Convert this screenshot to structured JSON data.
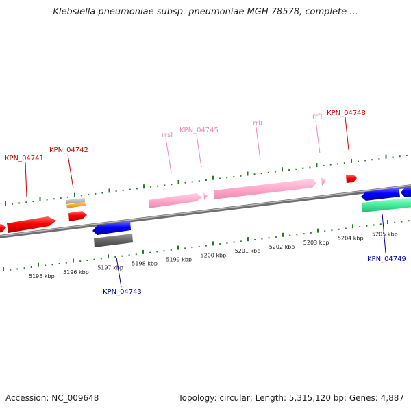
{
  "title": "Klebsiella pneumoniae subsp. pneumoniae MGH 78578, complete ...",
  "accession": "Accession: NC_009648",
  "summary": "Topology: circular; Length: 5,315,120 bp; Genes: 4,887",
  "colors": {
    "forward_gene": "#ff0000",
    "reverse_gene": "#0000ff",
    "rrna": "#ffaacc",
    "forward_label": "#cc0000",
    "reverse_label": "#0000aa",
    "rrna_label": "#ee88bb",
    "ticks": "#2a7a2a",
    "backbone": "#888888"
  },
  "scale_ticks": [
    {
      "label": "5195 kbp"
    },
    {
      "label": "5196 kbp"
    },
    {
      "label": "5197 kbp"
    },
    {
      "label": "5198 kbp"
    },
    {
      "label": "5199 kbp"
    },
    {
      "label": "5200 kbp"
    },
    {
      "label": "5201 kbp"
    },
    {
      "label": "5202 kbp"
    },
    {
      "label": "5203 kbp"
    },
    {
      "label": "5204 kbp"
    },
    {
      "label": "5205 kbp"
    }
  ],
  "feature_labels": {
    "kpn_04741": "KPN_04741",
    "kpn_04742": "KPN_04742",
    "rrsi": "rrsI",
    "kpn_04745": "KPN_04745",
    "rrli": "rrlI",
    "rrfi": "rrfI",
    "kpn_04748": "KPN_04748",
    "kpn_04743": "KPN_04743",
    "kpn_04749": "KPN_04749"
  }
}
